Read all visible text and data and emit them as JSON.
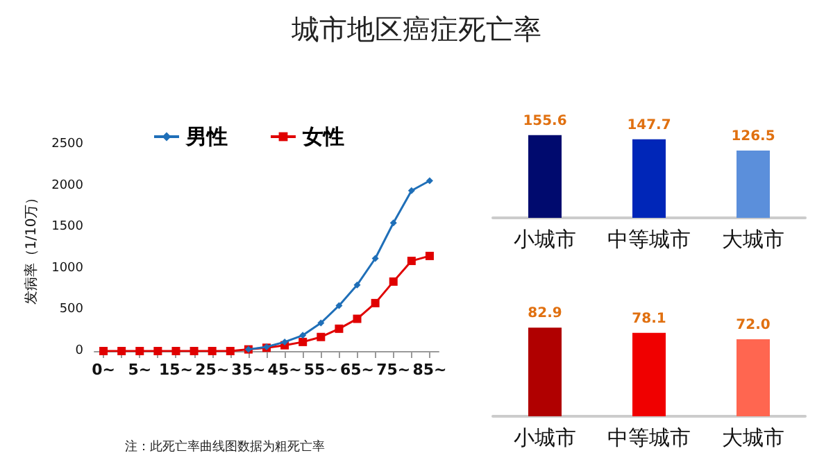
{
  "chart_data": [
    {
      "type": "line",
      "title": "城市地区癌症死亡率",
      "ylabel": "发病率（1/10万）",
      "categories": [
        "0~",
        null,
        "5~",
        null,
        "15~",
        null,
        "25~",
        null,
        "35~",
        null,
        "45~",
        null,
        "55~",
        null,
        "65~",
        null,
        "75~",
        null,
        "85~"
      ],
      "series": [
        {
          "name": "男性",
          "color": "#1f6fb8",
          "marker": "diamond",
          "values": [
            null,
            null,
            null,
            null,
            null,
            null,
            null,
            null,
            20,
            50,
            110,
            190,
            340,
            550,
            800,
            1120,
            1550,
            1940,
            2060
          ]
        },
        {
          "name": "女性",
          "color": "#e00000",
          "marker": "square",
          "values": [
            0,
            0,
            0,
            0,
            0,
            0,
            0,
            0,
            20,
            40,
            70,
            110,
            170,
            270,
            390,
            580,
            840,
            1090,
            1150
          ]
        }
      ],
      "ylim": [
        0,
        2500
      ],
      "yticks": [
        0,
        500,
        1000,
        1500,
        2000,
        2500
      ],
      "grid": false,
      "legend": "top",
      "annotations": [
        "注：此死亡率曲线图数据为粗死亡率"
      ]
    },
    {
      "type": "bar",
      "categories": [
        "小城市",
        "中等城市",
        "大城市"
      ],
      "values": [
        155.6,
        147.7,
        126.5
      ],
      "colors": [
        "#000a6e",
        "#0026b8",
        "#5b8fdb"
      ],
      "data_labels": true
    },
    {
      "type": "bar",
      "categories": [
        "小城市",
        "中等城市",
        "大城市"
      ],
      "values": [
        82.9,
        78.1,
        72.0
      ],
      "colors": [
        "#b00000",
        "#f00000",
        "#ff6650"
      ],
      "value_labels": [
        "82.9",
        "78.1",
        "72.0"
      ]
    }
  ]
}
